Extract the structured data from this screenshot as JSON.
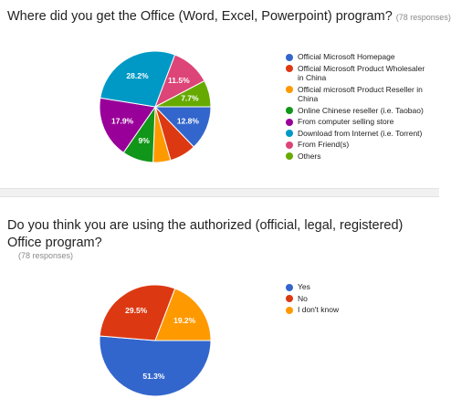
{
  "q1": {
    "title": "Where did you get the Office (Word, Excel, Powerpoint) program?",
    "responses": "(78 responses)",
    "chart_data": {
      "type": "pie",
      "title": "Where did you get the Office (Word, Excel, Powerpoint) program?",
      "slices": [
        {
          "label": "Official Microsoft Homepage",
          "value": 12.8,
          "text": "12.8%",
          "color": "#3366cc"
        },
        {
          "label": "Official Microsoft Product Wholesaler in China",
          "value": 7.7,
          "text": "",
          "color": "#dc3912"
        },
        {
          "label": "Official microsoft Product Reseller in China",
          "value": 5.1,
          "text": "",
          "color": "#ff9900"
        },
        {
          "label": "Online Chinese reseller (i.e. Taobao)",
          "value": 9.0,
          "text": "9%",
          "color": "#109618"
        },
        {
          "label": "From computer selling store",
          "value": 17.9,
          "text": "17.9%",
          "color": "#990099"
        },
        {
          "label": "Download from Internet (i.e. Torrent)",
          "value": 28.2,
          "text": "28.2%",
          "color": "#0099c6"
        },
        {
          "label": "From Friend(s)",
          "value": 11.5,
          "text": "11.5%",
          "color": "#dd4477"
        },
        {
          "label": "Others",
          "value": 7.7,
          "text": "7.7%",
          "color": "#66aa00"
        }
      ],
      "legend_position": "right"
    }
  },
  "q2": {
    "title": "Do you think you are using the authorized (official, legal, registered) Office program?",
    "responses": "(78 responses)",
    "chart_data": {
      "type": "pie",
      "title": "Do you think you are using the authorized (official, legal, registered) Office program?",
      "slices": [
        {
          "label": "Yes",
          "value": 51.3,
          "text": "51.3%",
          "color": "#3366cc"
        },
        {
          "label": "No",
          "value": 29.5,
          "text": "29.5%",
          "color": "#dc3912"
        },
        {
          "label": "I don't know",
          "value": 19.2,
          "text": "19.2%",
          "color": "#ff9900"
        }
      ],
      "legend_position": "right"
    }
  }
}
